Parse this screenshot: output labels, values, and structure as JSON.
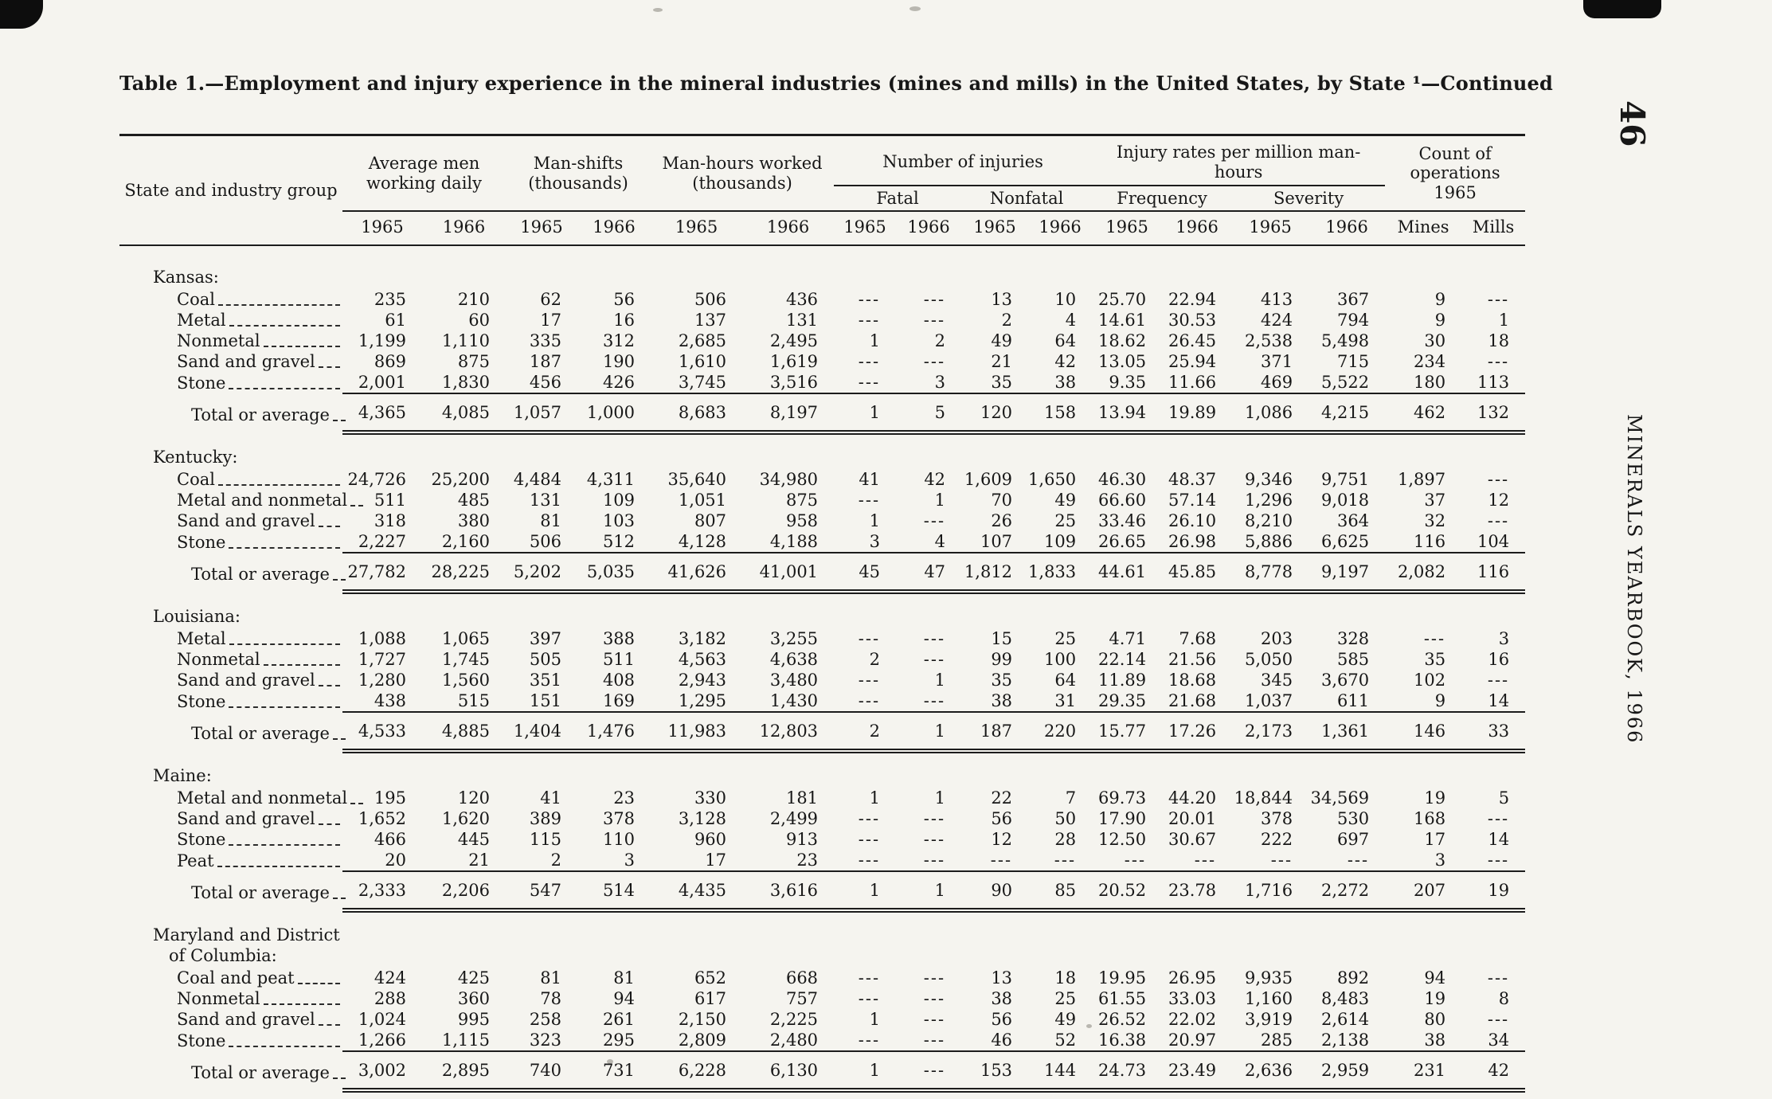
{
  "page": {
    "title": "Table 1.—Employment and injury experience in the mineral industries (mines and mills) in the United States, by State ¹—Continued",
    "page_number": "46",
    "running_title": "MINERALS YEARBOOK, 1966"
  },
  "header": {
    "state_col": "State and industry group",
    "avg_men": "Average men working daily",
    "man_shifts": "Man-shifts (thousands)",
    "man_hours": "Man-hours worked (thousands)",
    "injuries": "Number of injuries",
    "fatal": "Fatal",
    "nonfatal": "Nonfatal",
    "rates": "Injury rates per million man-hours",
    "frequency": "Frequency",
    "severity": "Severity",
    "operations": "Count of operations 1965",
    "mines": "Mines",
    "mills": "Mills",
    "y1965": "1965",
    "y1966": "1966"
  },
  "table": {
    "total_label": "Total or average",
    "value_columns": [
      "avg_men_1965",
      "avg_men_1966",
      "man_shifts_1965",
      "man_shifts_1966",
      "man_hours_1965",
      "man_hours_1966",
      "fatal_1965",
      "fatal_1966",
      "nonfatal_1965",
      "nonfatal_1966",
      "frequency_1965",
      "frequency_1966",
      "severity_1965",
      "severity_1966",
      "mines_1965",
      "mills_1965"
    ],
    "states": [
      {
        "name": "Kansas:",
        "rows": [
          {
            "label": "Coal",
            "values": [
              "235",
              "210",
              "62",
              "56",
              "506",
              "436",
              "---",
              "---",
              "13",
              "10",
              "25.70",
              "22.94",
              "413",
              "367",
              "9",
              "---"
            ]
          },
          {
            "label": "Metal",
            "values": [
              "61",
              "60",
              "17",
              "16",
              "137",
              "131",
              "---",
              "---",
              "2",
              "4",
              "14.61",
              "30.53",
              "424",
              "794",
              "9",
              "1"
            ]
          },
          {
            "label": "Nonmetal",
            "values": [
              "1,199",
              "1,110",
              "335",
              "312",
              "2,685",
              "2,495",
              "1",
              "2",
              "49",
              "64",
              "18.62",
              "26.45",
              "2,538",
              "5,498",
              "30",
              "18"
            ]
          },
          {
            "label": "Sand and gravel",
            "values": [
              "869",
              "875",
              "187",
              "190",
              "1,610",
              "1,619",
              "---",
              "---",
              "21",
              "42",
              "13.05",
              "25.94",
              "371",
              "715",
              "234",
              "---"
            ]
          },
          {
            "label": "Stone",
            "values": [
              "2,001",
              "1,830",
              "456",
              "426",
              "3,745",
              "3,516",
              "---",
              "3",
              "35",
              "38",
              "9.35",
              "11.66",
              "469",
              "5,522",
              "180",
              "113"
            ]
          }
        ],
        "total": {
          "values": [
            "4,365",
            "4,085",
            "1,057",
            "1,000",
            "8,683",
            "8,197",
            "1",
            "5",
            "120",
            "158",
            "13.94",
            "19.89",
            "1,086",
            "4,215",
            "462",
            "132"
          ]
        }
      },
      {
        "name": "Kentucky:",
        "rows": [
          {
            "label": "Coal",
            "values": [
              "24,726",
              "25,200",
              "4,484",
              "4,311",
              "35,640",
              "34,980",
              "41",
              "42",
              "1,609",
              "1,650",
              "46.30",
              "48.37",
              "9,346",
              "9,751",
              "1,897",
              "---"
            ]
          },
          {
            "label": "Metal and nonmetal",
            "values": [
              "511",
              "485",
              "131",
              "109",
              "1,051",
              "875",
              "---",
              "1",
              "70",
              "49",
              "66.60",
              "57.14",
              "1,296",
              "9,018",
              "37",
              "12"
            ]
          },
          {
            "label": "Sand and gravel",
            "values": [
              "318",
              "380",
              "81",
              "103",
              "807",
              "958",
              "1",
              "---",
              "26",
              "25",
              "33.46",
              "26.10",
              "8,210",
              "364",
              "32",
              "---"
            ]
          },
          {
            "label": "Stone",
            "values": [
              "2,227",
              "2,160",
              "506",
              "512",
              "4,128",
              "4,188",
              "3",
              "4",
              "107",
              "109",
              "26.65",
              "26.98",
              "5,886",
              "6,625",
              "116",
              "104"
            ]
          }
        ],
        "total": {
          "values": [
            "27,782",
            "28,225",
            "5,202",
            "5,035",
            "41,626",
            "41,001",
            "45",
            "47",
            "1,812",
            "1,833",
            "44.61",
            "45.85",
            "8,778",
            "9,197",
            "2,082",
            "116"
          ]
        }
      },
      {
        "name": "Louisiana:",
        "rows": [
          {
            "label": "Metal",
            "values": [
              "1,088",
              "1,065",
              "397",
              "388",
              "3,182",
              "3,255",
              "---",
              "---",
              "15",
              "25",
              "4.71",
              "7.68",
              "203",
              "328",
              "---",
              "3"
            ]
          },
          {
            "label": "Nonmetal",
            "values": [
              "1,727",
              "1,745",
              "505",
              "511",
              "4,563",
              "4,638",
              "2",
              "---",
              "99",
              "100",
              "22.14",
              "21.56",
              "5,050",
              "585",
              "35",
              "16"
            ]
          },
          {
            "label": "Sand and gravel",
            "values": [
              "1,280",
              "1,560",
              "351",
              "408",
              "2,943",
              "3,480",
              "---",
              "1",
              "35",
              "64",
              "11.89",
              "18.68",
              "345",
              "3,670",
              "102",
              "---"
            ]
          },
          {
            "label": "Stone",
            "values": [
              "438",
              "515",
              "151",
              "169",
              "1,295",
              "1,430",
              "---",
              "---",
              "38",
              "31",
              "29.35",
              "21.68",
              "1,037",
              "611",
              "9",
              "14"
            ]
          }
        ],
        "total": {
          "values": [
            "4,533",
            "4,885",
            "1,404",
            "1,476",
            "11,983",
            "12,803",
            "2",
            "1",
            "187",
            "220",
            "15.77",
            "17.26",
            "2,173",
            "1,361",
            "146",
            "33"
          ]
        }
      },
      {
        "name": "Maine:",
        "rows": [
          {
            "label": "Metal and nonmetal",
            "values": [
              "195",
              "120",
              "41",
              "23",
              "330",
              "181",
              "1",
              "1",
              "22",
              "7",
              "69.73",
              "44.20",
              "18,844",
              "34,569",
              "19",
              "5"
            ]
          },
          {
            "label": "Sand and gravel",
            "values": [
              "1,652",
              "1,620",
              "389",
              "378",
              "3,128",
              "2,499",
              "---",
              "---",
              "56",
              "50",
              "17.90",
              "20.01",
              "378",
              "530",
              "168",
              "---"
            ]
          },
          {
            "label": "Stone",
            "values": [
              "466",
              "445",
              "115",
              "110",
              "960",
              "913",
              "---",
              "---",
              "12",
              "28",
              "12.50",
              "30.67",
              "222",
              "697",
              "17",
              "14"
            ]
          },
          {
            "label": "Peat",
            "values": [
              "20",
              "21",
              "2",
              "3",
              "17",
              "23",
              "---",
              "---",
              "---",
              "---",
              "---",
              "---",
              "---",
              "---",
              "3",
              "---"
            ]
          }
        ],
        "total": {
          "values": [
            "2,333",
            "2,206",
            "547",
            "514",
            "4,435",
            "3,616",
            "1",
            "1",
            "90",
            "85",
            "20.52",
            "23.78",
            "1,716",
            "2,272",
            "207",
            "19"
          ]
        }
      },
      {
        "name": "Maryland and District\n   of Columbia:",
        "rows": [
          {
            "label": "Coal and peat",
            "values": [
              "424",
              "425",
              "81",
              "81",
              "652",
              "668",
              "---",
              "---",
              "13",
              "18",
              "19.95",
              "26.95",
              "9,935",
              "892",
              "94",
              "---"
            ]
          },
          {
            "label": "Nonmetal",
            "values": [
              "288",
              "360",
              "78",
              "94",
              "617",
              "757",
              "---",
              "---",
              "38",
              "25",
              "61.55",
              "33.03",
              "1,160",
              "8,483",
              "19",
              "8"
            ]
          },
          {
            "label": "Sand and gravel",
            "values": [
              "1,024",
              "995",
              "258",
              "261",
              "2,150",
              "2,225",
              "1",
              "---",
              "56",
              "49",
              "26.52",
              "22.02",
              "3,919",
              "2,614",
              "80",
              "---"
            ]
          },
          {
            "label": "Stone",
            "values": [
              "1,266",
              "1,115",
              "323",
              "295",
              "2,809",
              "2,480",
              "---",
              "---",
              "46",
              "52",
              "16.38",
              "20.97",
              "285",
              "2,138",
              "38",
              "34"
            ]
          }
        ],
        "total": {
          "values": [
            "3,002",
            "2,895",
            "740",
            "731",
            "6,228",
            "6,130",
            "1",
            "---",
            "153",
            "144",
            "24.73",
            "23.49",
            "2,636",
            "2,959",
            "231",
            "42"
          ]
        }
      }
    ]
  }
}
